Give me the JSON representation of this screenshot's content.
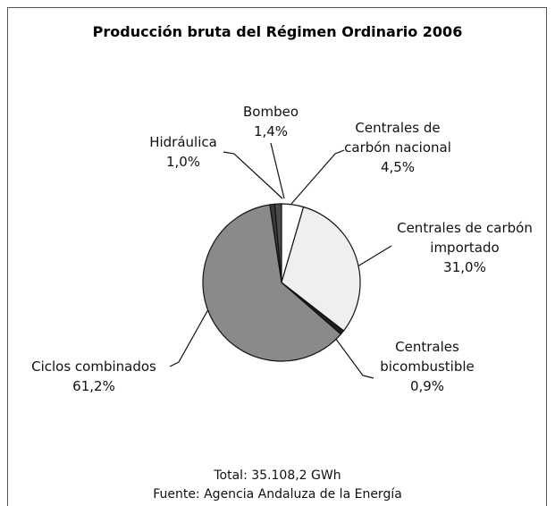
{
  "chart_data": {
    "type": "pie",
    "title": "Producción bruta del Régimen Ordinario 2006",
    "categories": [
      "Hidráulica",
      "Bombeo",
      "Centrales de carbón nacional",
      "Centrales de carbón importado",
      "Centrales bicombustible",
      "Ciclos combinados"
    ],
    "values": [
      1.0,
      1.4,
      4.5,
      31.0,
      0.9,
      61.2
    ],
    "value_labels": [
      "1,0%",
      "1,4%",
      "4,5%",
      "31,0%",
      "0,9%",
      "61,2%"
    ],
    "colors": [
      "#3a3a3a",
      "#4a4a4a",
      "#ffffff",
      "#efefef",
      "#1e1e1e",
      "#8a8a8a"
    ],
    "total": "Total: 35.108,2 GWh",
    "source": "Fuente: Agencia Andaluza de la Energía"
  }
}
